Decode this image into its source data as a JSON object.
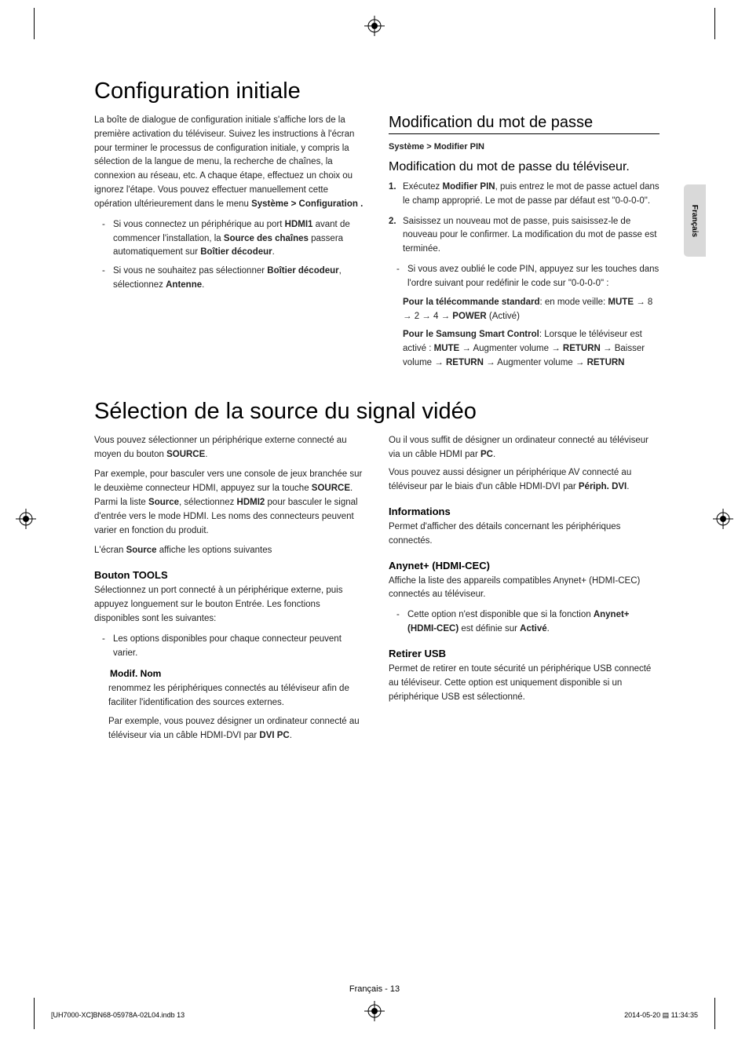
{
  "lang_tab": "Français",
  "section1": {
    "title": "Configuration initiale",
    "left": {
      "intro": "La boîte de dialogue de configuration initiale s'affiche lors de la première activation du téléviseur. Suivez les instructions à l'écran pour terminer le processus de configuration initiale, y compris la sélection de la langue de menu, la recherche de chaînes, la connexion au réseau, etc. A chaque étape, effectuez un choix ou ignorez l'étape. Vous pouvez effectuer manuellement cette opération ultérieurement dans le menu ",
      "intro_path": "Système > Configuration .",
      "bullets": [
        {
          "pre": "Si vous connectez un périphérique au port ",
          "b1": "HDMI1",
          "mid": " avant de commencer l'installation, la ",
          "b2": "Source des chaînes",
          "mid2": " passera automatiquement sur ",
          "b3": "Boîtier décodeur",
          "post": "."
        },
        {
          "pre": "Si vous ne souhaitez pas sélectionner ",
          "b1": "Boîtier décodeur",
          "mid": ", sélectionnez ",
          "b2": "Antenne",
          "post": "."
        }
      ]
    },
    "right": {
      "h2": "Modification du mot de passe",
      "path": "Système > Modifier PIN",
      "h3": "Modification du mot de passe du téléviseur.",
      "steps": [
        {
          "n": "1.",
          "pre": "Exécutez ",
          "b": "Modifier PIN",
          "post": ", puis entrez le mot de passe actuel dans le champ approprié. Le mot de passe par défaut est \"0-0-0-0\"."
        },
        {
          "n": "2.",
          "pre": "",
          "b": "",
          "post": "Saisissez un nouveau mot de passe, puis saisissez-le de nouveau pour le confirmer. La modification du mot de passe est terminée."
        }
      ],
      "dash": "Si vous avez oublié le code PIN, appuyez sur les touches dans l'ordre suivant pour redéfinir le code sur \"0-0-0-0\" :",
      "std_label": "Pour la télécommande standard",
      "std_text": ": en mode veille: ",
      "std_seq_b1": "MUTE",
      "std_seq_mid": " → 8 → 2 → 4 → ",
      "std_seq_b2": "POWER",
      "std_seq_post": " (Activé)",
      "smart_label": "Pour le Samsung Smart Control",
      "smart_text": ": Lorsque le téléviseur est activé : ",
      "smart_seq": "MUTE → Augmenter volume → RETURN → Baisser volume → RETURN → Augmenter volume → RETURN"
    }
  },
  "section2": {
    "title": "Sélection de la source du signal vidéo",
    "left": {
      "p1_pre": "Vous pouvez sélectionner un périphérique externe connecté au moyen du bouton ",
      "p1_b": "SOURCE",
      "p1_post": ".",
      "p2_pre": "Par exemple, pour basculer vers une console de jeux branchée sur le deuxième connecteur HDMI, appuyez sur la touche ",
      "p2_b1": "SOURCE",
      "p2_mid": ". Parmi la liste ",
      "p2_b2": "Source",
      "p2_mid2": ", sélectionnez ",
      "p2_b3": "HDMI2",
      "p2_post": " pour basculer le signal d'entrée vers le mode HDMI. Les noms des connecteurs peuvent varier en fonction du produit.",
      "p3_pre": "L'écran ",
      "p3_b": "Source",
      "p3_post": " affiche les options suivantes",
      "h4": "Bouton TOOLS",
      "p4": "Sélectionnez un port connecté à un périphérique externe, puis appuyez longuement sur le bouton Entrée. Les fonctions disponibles sont les suivantes:",
      "bullet": "Les options disponibles pour chaque connecteur peuvent varier.",
      "modif_h": "Modif. Nom",
      "modif_p1": "renommez les périphériques connectés au téléviseur afin de faciliter l'identification des sources externes.",
      "modif_p2_pre": "Par exemple, vous pouvez désigner un ordinateur connecté au téléviseur via un câble HDMI-DVI par ",
      "modif_p2_b": "DVI PC",
      "modif_p2_post": "."
    },
    "right": {
      "p1_pre": "Ou il vous suffit de désigner un ordinateur connecté au téléviseur via un câble HDMI par ",
      "p1_b": "PC",
      "p1_post": ".",
      "p2_pre": "Vous pouvez aussi désigner un périphérique AV connecté au téléviseur par le biais d'un câble HDMI-DVI par ",
      "p2_b": "Périph. DVI",
      "p2_post": ".",
      "info_h": "Informations",
      "info_p": "Permet d'afficher des détails concernant les périphériques connectés.",
      "anynet_h": "Anynet+ (HDMI-CEC)",
      "anynet_p": "Affiche la liste des appareils compatibles Anynet+ (HDMI-CEC) connectés au téléviseur.",
      "anynet_bullet_pre": "Cette option n'est disponible que si la fonction ",
      "anynet_bullet_b": "Anynet+ (HDMI-CEC)",
      "anynet_bullet_mid": " est définie sur ",
      "anynet_bullet_b2": "Activé",
      "anynet_bullet_post": ".",
      "usb_h": "Retirer USB",
      "usb_p": "Permet de retirer en toute sécurité un périphérique USB connecté au téléviseur. Cette option est uniquement disponible si un périphérique USB est sélectionné."
    }
  },
  "footer": "Français - 13",
  "print_left": "[UH7000-XC]BN68-05978A-02L04.indb   13",
  "print_right": "2014-05-20   ▤ 11:34:35"
}
